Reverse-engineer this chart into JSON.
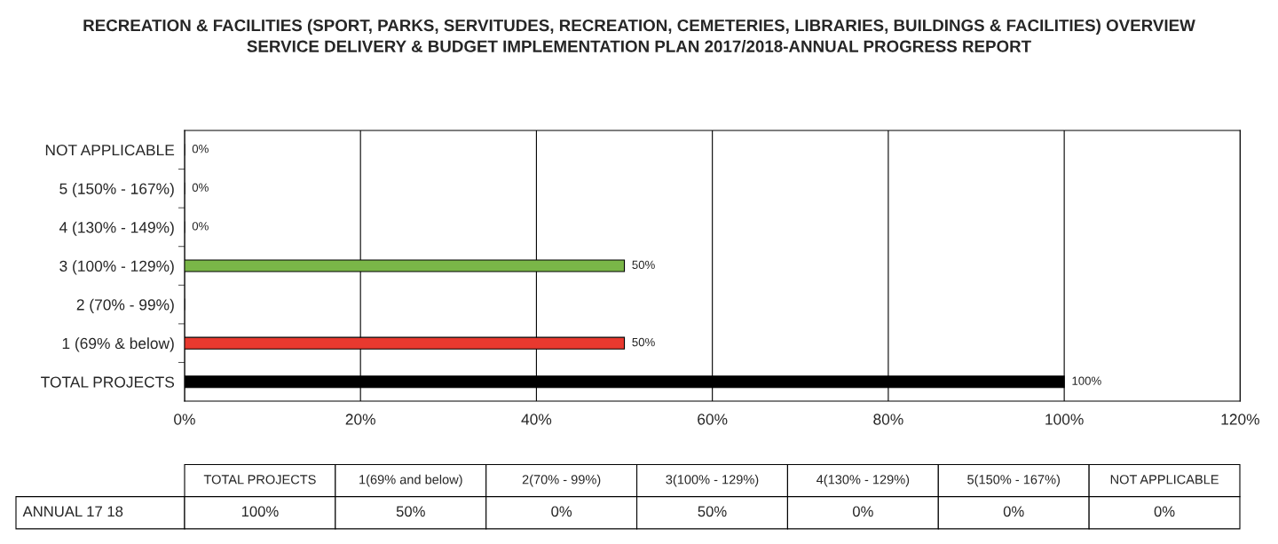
{
  "chart_data": [
    {
      "type": "bar",
      "orientation": "horizontal",
      "title": "RECREATION & FACILITIES (SPORT, PARKS, SERVITUDES, RECREATION, CEMETERIES, LIBRARIES, BUILDINGS & FACILITIES) OVERVIEW\nSERVICE DELIVERY & BUDGET IMPLEMENTATION PLAN 2017/2018-ANNUAL PROGRESS REPORT",
      "categories": [
        "NOT APPLICABLE",
        "5 (150% - 167%)",
        "4 (130% - 149%)",
        "3 (100% - 129%)",
        "2 (70% - 99%)",
        "1 (69% & below)",
        "TOTAL PROJECTS"
      ],
      "values": [
        0,
        0,
        0,
        50,
        0,
        50,
        100
      ],
      "colors": [
        "#000000",
        "#000000",
        "#000000",
        "#7ab648",
        "#000000",
        "#e8392f",
        "#000000"
      ],
      "value_labels": [
        "0%",
        "0%",
        "0%",
        "50%",
        null,
        "50%",
        "100%"
      ],
      "xlim": [
        0,
        120
      ],
      "xticks": [
        {
          "value": 0,
          "label": "0%"
        },
        {
          "value": 20,
          "label": "20%"
        },
        {
          "value": 40,
          "label": "40%"
        },
        {
          "value": 60,
          "label": "60%"
        },
        {
          "value": 80,
          "label": "80%"
        },
        {
          "value": 100,
          "label": "100%"
        },
        {
          "value": 120,
          "label": "120%"
        }
      ],
      "grid": "x",
      "legend": false
    },
    {
      "type": "other",
      "categories": [
        "TOTAL PROJECTS",
        "1(69% and below)",
        "2(70% - 99%)",
        "3(100% - 129%)",
        "4(130% - 129%)",
        "5(150% - 167%)",
        "NOT APPLICABLE"
      ],
      "y_categories": [
        "ANNUAL 17 18"
      ],
      "cell_labels": [
        [
          "100%",
          "50%",
          "0%",
          "50%",
          "0%",
          "0%",
          "0%"
        ]
      ]
    }
  ]
}
